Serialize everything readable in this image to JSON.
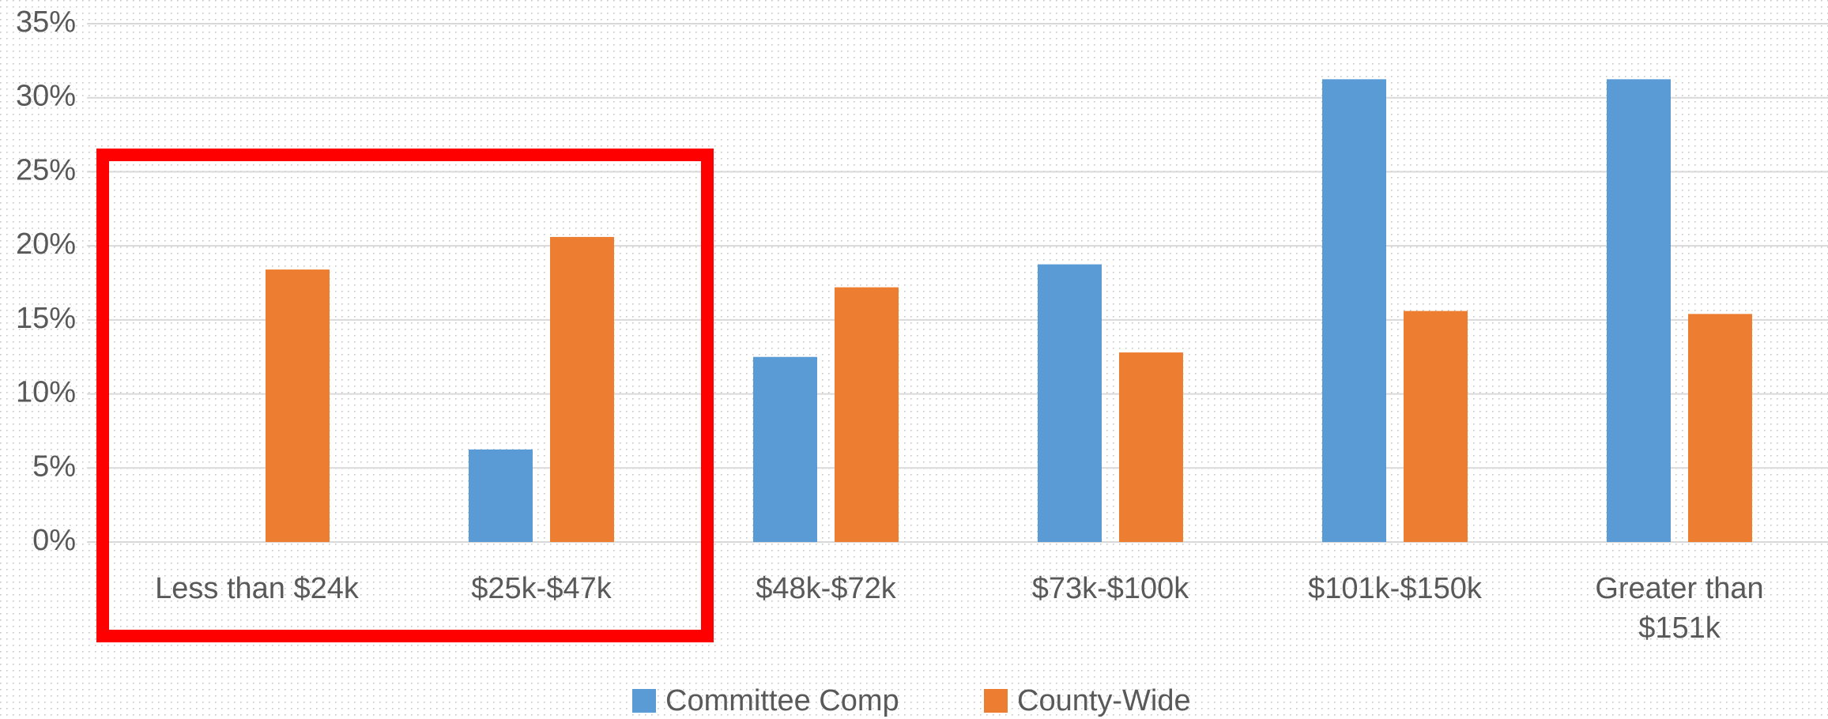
{
  "chart_data": {
    "type": "bar",
    "categories": [
      "Less than $24k",
      "$25k-$47k",
      "$48k-$72k",
      "$73k-$100k",
      "$101k-$150k",
      "Greater than $151k"
    ],
    "series": [
      {
        "name": "Committee Comp",
        "color": "#5b9bd5",
        "values": [
          0,
          6.25,
          12.5,
          18.75,
          31.25,
          31.25
        ]
      },
      {
        "name": "County-Wide",
        "color": "#ed7d31",
        "values": [
          18.4,
          20.6,
          17.2,
          12.8,
          15.6,
          15.4
        ]
      }
    ],
    "ylim": [
      0,
      35
    ],
    "yticks": [
      {
        "value": 0,
        "label": "0%"
      },
      {
        "value": 5,
        "label": "5%"
      },
      {
        "value": 10,
        "label": "10%"
      },
      {
        "value": 15,
        "label": "15%"
      },
      {
        "value": 20,
        "label": "20%"
      },
      {
        "value": 25,
        "label": "25%"
      },
      {
        "value": 30,
        "label": "30%"
      },
      {
        "value": 35,
        "label": "35%"
      }
    ],
    "grid": true,
    "legend": "bottom"
  }
}
